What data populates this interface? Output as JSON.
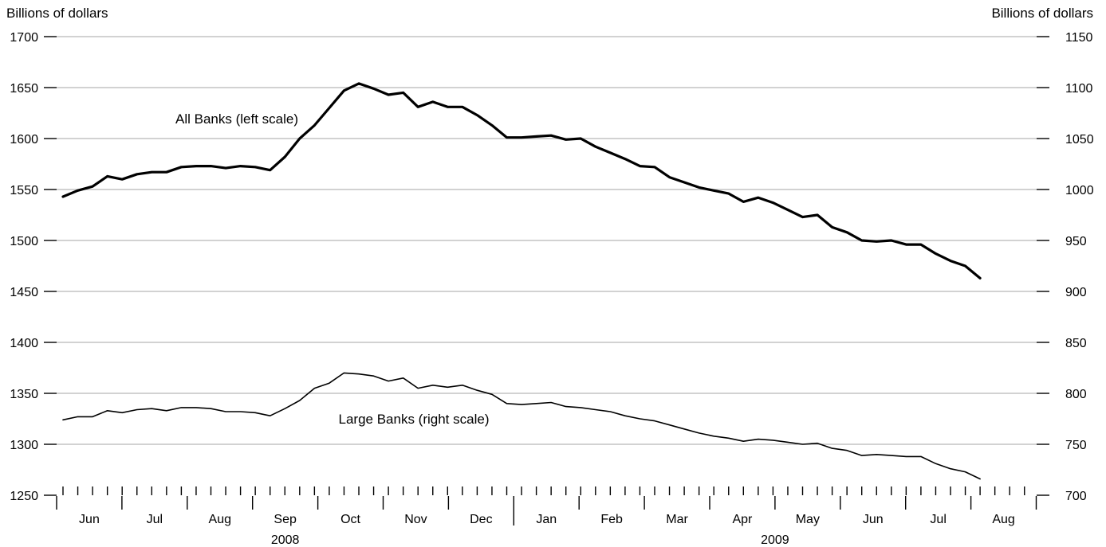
{
  "chart_data": {
    "type": "line",
    "left_axis": {
      "label": "Billions of dollars",
      "ylim": [
        1250,
        1700
      ],
      "ticks": [
        "1250",
        "1300",
        "1350",
        "1400",
        "1450",
        "1500",
        "1550",
        "1600",
        "1650",
        "1700"
      ]
    },
    "right_axis": {
      "label": "Billions of dollars",
      "ylim": [
        700,
        1150
      ],
      "ticks": [
        "700",
        "750",
        "800",
        "850",
        "900",
        "950",
        "1000",
        "1050",
        "1100",
        "1150"
      ]
    },
    "grid": true,
    "months": [
      "Jun",
      "Jul",
      "Aug",
      "Sep",
      "Oct",
      "Nov",
      "Dec",
      "Jan",
      "Feb",
      "Mar",
      "Apr",
      "May",
      "Jun",
      "Jul",
      "Aug"
    ],
    "years": [
      {
        "label": "2008",
        "month_start": 0,
        "month_end": 7
      },
      {
        "label": "2009",
        "month_start": 7,
        "month_end": 15
      }
    ],
    "x_unit": "weeks from first week of June 2008",
    "series": [
      {
        "name": "All Banks (left scale)",
        "axis": "left",
        "color": "#000000",
        "values": [
          1543,
          1549,
          1553,
          1563,
          1560,
          1565,
          1567,
          1567,
          1572,
          1573,
          1573,
          1571,
          1573,
          1572,
          1569,
          1582,
          1600,
          1613,
          1630,
          1647,
          1654,
          1649,
          1643,
          1645,
          1631,
          1636,
          1631,
          1631,
          1623,
          1613,
          1601,
          1601,
          1602,
          1603,
          1599,
          1600,
          1592,
          1586,
          1580,
          1573,
          1572,
          1562,
          1557,
          1552,
          1549,
          1546,
          1538,
          1542,
          1537,
          1530,
          1523,
          1525,
          1513,
          1508,
          1500,
          1499,
          1500,
          1496,
          1496,
          1487,
          1480,
          1475,
          1463
        ]
      },
      {
        "name": "Large Banks (right scale)",
        "axis": "right",
        "color": "#000000",
        "values": [
          774,
          777,
          777,
          783,
          781,
          784,
          785,
          783,
          786,
          786,
          785,
          782,
          782,
          781,
          778,
          785,
          793,
          805,
          810,
          820,
          819,
          817,
          812,
          815,
          805,
          808,
          806,
          808,
          803,
          799,
          790,
          789,
          790,
          791,
          787,
          786,
          784,
          782,
          778,
          775,
          773,
          769,
          765,
          761,
          758,
          756,
          753,
          755,
          754,
          752,
          750,
          751,
          746,
          744,
          739,
          740,
          739,
          738,
          738,
          731,
          726,
          723,
          716
        ]
      }
    ]
  }
}
